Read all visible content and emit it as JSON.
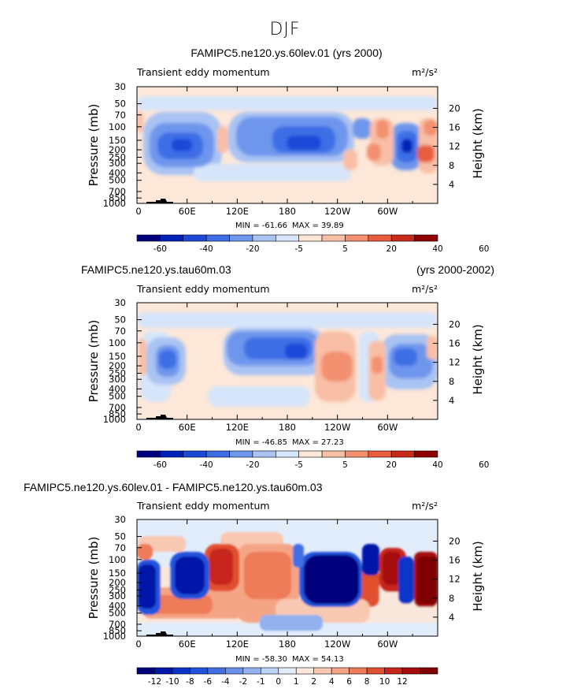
{
  "figure_title": "DJF",
  "chart_data": [
    {
      "type": "heatmap",
      "title": "FAMIPC5.ne120.ys.60lev.01 (yrs 2000)",
      "title_right": "",
      "subtitle_left": "Transient eddy momentum",
      "units": "m²/s²",
      "ylabel": "Pressure (mb)",
      "ylabel_right": "Height (km)",
      "x_ticks": [
        "0",
        "60E",
        "120E",
        "180",
        "120W",
        "60W"
      ],
      "y_ticks": [
        "30",
        "50",
        "70",
        "100",
        "150",
        "200",
        "250",
        "300",
        "400",
        "500",
        "700",
        "850",
        "1000"
      ],
      "y_right_ticks": [
        "20",
        "16",
        "12",
        "8",
        "4"
      ],
      "min_label": "MIN = -61.66",
      "max_label": "MAX = 39.89",
      "min": -61.66,
      "max": 39.89,
      "colorbar_levels": [
        "-60",
        "-40",
        "-20",
        "-5",
        "5",
        "20",
        "40",
        "60"
      ]
    },
    {
      "type": "heatmap",
      "title": "FAMIPC5.ne120.ys.tau60m.03",
      "title_right": "(yrs 2000-2002)",
      "subtitle_left": "Transient eddy momentum",
      "units": "m²/s²",
      "ylabel": "Pressure (mb)",
      "ylabel_right": "Height (km)",
      "x_ticks": [
        "0",
        "60E",
        "120E",
        "180",
        "120W",
        "60W"
      ],
      "y_ticks": [
        "30",
        "50",
        "70",
        "100",
        "150",
        "200",
        "250",
        "300",
        "400",
        "500",
        "700",
        "850",
        "1000"
      ],
      "y_right_ticks": [
        "20",
        "16",
        "12",
        "8",
        "4"
      ],
      "min_label": "MIN = -46.85",
      "max_label": "MAX = 27.23",
      "min": -46.85,
      "max": 27.23,
      "colorbar_levels": [
        "-60",
        "-40",
        "-20",
        "-5",
        "5",
        "20",
        "40",
        "60"
      ]
    },
    {
      "type": "heatmap",
      "title": "FAMIPC5.ne120.ys.60lev.01 - FAMIPC5.ne120.ys.tau60m.03",
      "title_right": "",
      "subtitle_left": "Transient eddy momentum",
      "units": "m²/s²",
      "ylabel": "Pressure (mb)",
      "ylabel_right": "Height (km)",
      "x_ticks": [
        "0",
        "60E",
        "120E",
        "180",
        "120W",
        "60W"
      ],
      "y_ticks": [
        "30",
        "50",
        "70",
        "100",
        "150",
        "200",
        "250",
        "300",
        "400",
        "500",
        "700",
        "850",
        "1000"
      ],
      "y_right_ticks": [
        "20",
        "16",
        "12",
        "8",
        "4"
      ],
      "min_label": "MIN = -58.30",
      "max_label": "MAX = 54.13",
      "min": -58.3,
      "max": 54.13,
      "colorbar_levels": [
        "-12",
        "-10",
        "-8",
        "-6",
        "-4",
        "-2",
        "-1",
        "0",
        "1",
        "2",
        "4",
        "6",
        "8",
        "10",
        "12"
      ]
    }
  ],
  "colors": {
    "colorbar_12": [
      "#00007f",
      "#0022b8",
      "#1d48d8",
      "#3d6ee6",
      "#6e96ec",
      "#a9c3f2",
      "#d6e5fa",
      "#fde6d6",
      "#f8bfa6",
      "#f2906f",
      "#e75d3e",
      "#c92a1a",
      "#8f0000"
    ],
    "colorbar_16": [
      "#00007f",
      "#0018a8",
      "#0a34c8",
      "#2352da",
      "#4270e4",
      "#6990ea",
      "#93b1ef",
      "#bdd2f6",
      "#e2edfc",
      "#fde7d8",
      "#f9c8b2",
      "#f4a585",
      "#ee7c59",
      "#e1502f",
      "#c7261a",
      "#a50c0c",
      "#7f0000"
    ],
    "background_neutral": "#fde7d8"
  }
}
